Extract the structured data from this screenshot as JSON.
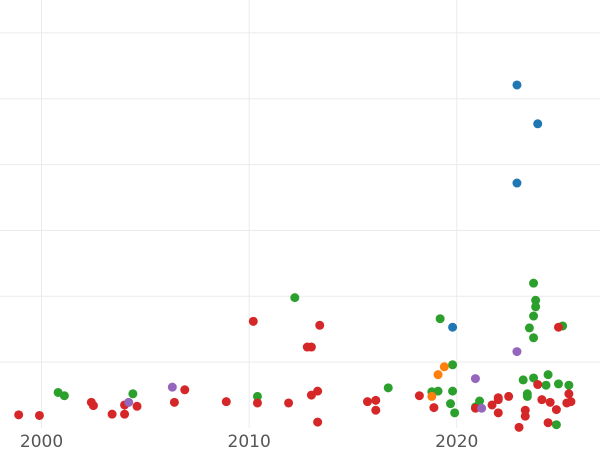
{
  "chart_data": {
    "type": "scatter",
    "title": "",
    "xlabel": "",
    "ylabel": "",
    "xlim": [
      1998.0,
      2026.9
    ],
    "ylim": [
      0,
      6.5
    ],
    "x_ticks": [
      2000,
      2010,
      2020
    ],
    "x_tick_labels": [
      "2000",
      "2010",
      "2020"
    ],
    "y_gridlines": [
      1,
      2,
      3,
      4,
      5,
      6
    ],
    "grid": true,
    "legend": "none",
    "series": [
      {
        "color": "#1f77b4",
        "points": [
          [
            2022.9,
            5.21
          ],
          [
            2023.9,
            4.62
          ],
          [
            2022.9,
            3.72
          ],
          [
            2019.8,
            1.53
          ]
        ]
      },
      {
        "color": "#2ca02c",
        "points": [
          [
            2012.2,
            1.98
          ],
          [
            2019.2,
            1.66
          ],
          [
            2023.7,
            2.2
          ],
          [
            2023.8,
            1.94
          ],
          [
            2023.8,
            1.84
          ],
          [
            2023.7,
            1.7
          ],
          [
            2023.5,
            1.52
          ],
          [
            2025.1,
            1.55
          ],
          [
            2023.7,
            1.37
          ],
          [
            2000.8,
            0.54
          ],
          [
            2001.1,
            0.49
          ],
          [
            2004.4,
            0.52
          ],
          [
            2010.4,
            0.48
          ],
          [
            2016.7,
            0.61
          ],
          [
            2018.8,
            0.55
          ],
          [
            2019.1,
            0.56
          ],
          [
            2019.8,
            0.56
          ],
          [
            2019.8,
            0.96
          ],
          [
            2019.7,
            0.37
          ],
          [
            2019.9,
            0.23
          ],
          [
            2021.1,
            0.41
          ],
          [
            2023.2,
            0.73
          ],
          [
            2023.4,
            0.52
          ],
          [
            2023.4,
            0.48
          ],
          [
            2023.7,
            0.76
          ],
          [
            2024.3,
            0.65
          ],
          [
            2024.4,
            0.81
          ],
          [
            2024.9,
            0.67
          ],
          [
            2025.4,
            0.65
          ],
          [
            2024.8,
            0.05
          ],
          [
            2020.9,
            0.32
          ]
        ]
      },
      {
        "color": "#d62728",
        "points": [
          [
            1998.9,
            0.2
          ],
          [
            1999.9,
            0.19
          ],
          [
            2002.4,
            0.39
          ],
          [
            2002.5,
            0.34
          ],
          [
            2003.4,
            0.21
          ],
          [
            2004.0,
            0.21
          ],
          [
            2004.0,
            0.35
          ],
          [
            2004.6,
            0.33
          ],
          [
            2006.4,
            0.39
          ],
          [
            2006.9,
            0.58
          ],
          [
            2008.9,
            0.4
          ],
          [
            2010.2,
            1.62
          ],
          [
            2010.4,
            0.38
          ],
          [
            2011.9,
            0.38
          ],
          [
            2013.4,
            1.56
          ],
          [
            2012.8,
            1.23
          ],
          [
            2013.0,
            1.23
          ],
          [
            2013.0,
            0.5
          ],
          [
            2013.3,
            0.56
          ],
          [
            2013.3,
            0.09
          ],
          [
            2015.7,
            0.4
          ],
          [
            2016.1,
            0.42
          ],
          [
            2016.1,
            0.27
          ],
          [
            2018.2,
            0.49
          ],
          [
            2018.9,
            0.31
          ],
          [
            2020.9,
            0.3
          ],
          [
            2021.7,
            0.35
          ],
          [
            2022.0,
            0.46
          ],
          [
            2022.0,
            0.43
          ],
          [
            2022.0,
            0.23
          ],
          [
            2022.5,
            0.48
          ],
          [
            2023.0,
            0.01
          ],
          [
            2023.3,
            0.18
          ],
          [
            2023.3,
            0.27
          ],
          [
            2023.9,
            0.66
          ],
          [
            2024.1,
            0.43
          ],
          [
            2024.5,
            0.39
          ],
          [
            2024.4,
            0.08
          ],
          [
            2024.8,
            0.28
          ],
          [
            2024.9,
            1.53
          ],
          [
            2025.4,
            0.52
          ],
          [
            2025.3,
            0.38
          ],
          [
            2025.5,
            0.4
          ]
        ]
      },
      {
        "color": "#ff7f0e",
        "points": [
          [
            2019.4,
            0.93
          ],
          [
            2019.1,
            0.81
          ],
          [
            2018.8,
            0.48
          ]
        ]
      },
      {
        "color": "#9467bd",
        "points": [
          [
            2004.2,
            0.39
          ],
          [
            2006.3,
            0.62
          ],
          [
            2020.9,
            0.75
          ],
          [
            2021.2,
            0.3
          ],
          [
            2022.9,
            1.16
          ]
        ]
      }
    ]
  }
}
